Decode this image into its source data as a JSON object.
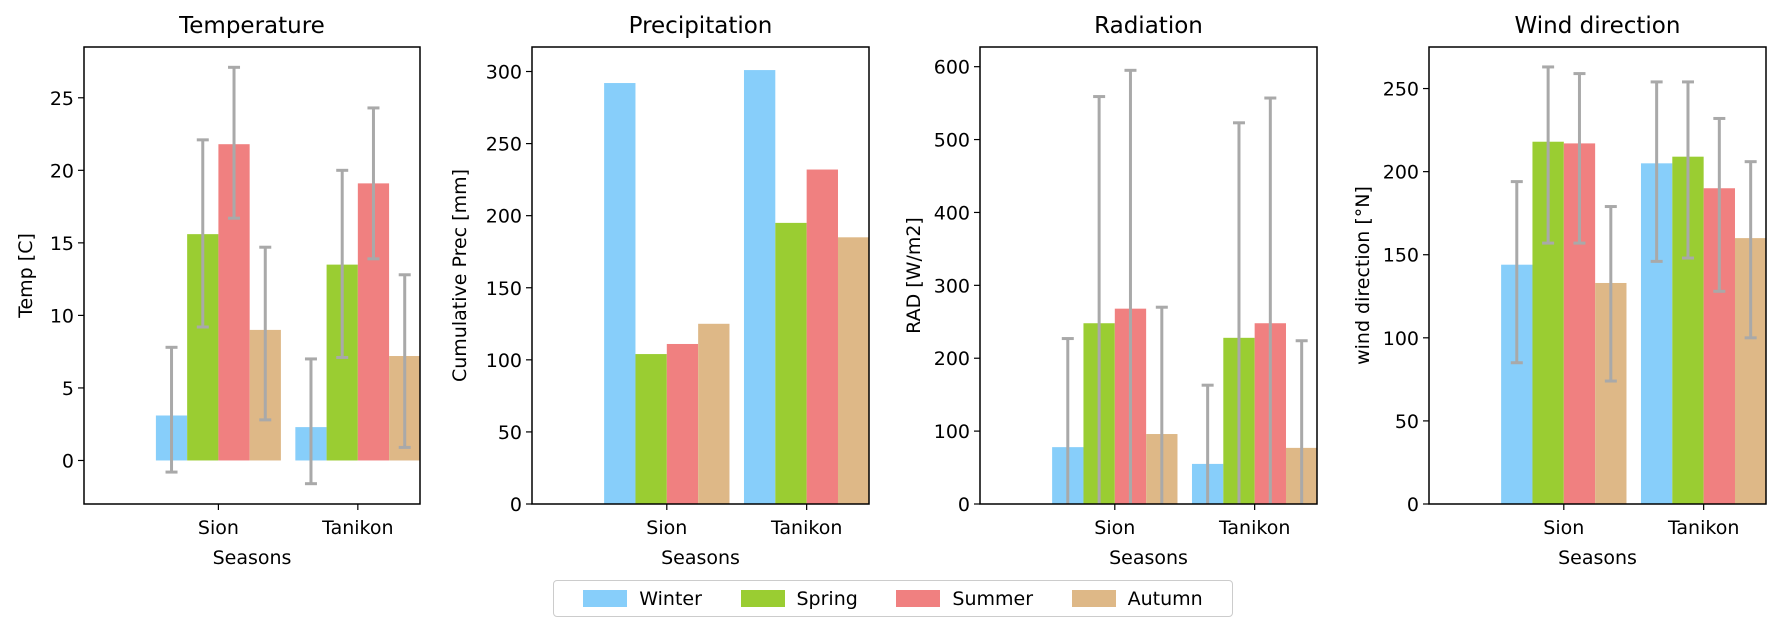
{
  "legend": {
    "items": [
      {
        "label": "Winter",
        "color": "#87CEFA"
      },
      {
        "label": "Spring",
        "color": "#9ACD32"
      },
      {
        "label": "Summer",
        "color": "#F08080"
      },
      {
        "label": "Autumn",
        "color": "#DEB887"
      }
    ]
  },
  "error_bar_color": "#a9a9a9",
  "chart_data": [
    {
      "type": "bar",
      "title": "Temperature",
      "xlabel": "Seasons",
      "ylabel": "Temp [C]",
      "categories": [
        "Sion",
        "Tanikon"
      ],
      "ylim": [
        -3,
        28.5
      ],
      "yticks": [
        0,
        5,
        10,
        15,
        20,
        25
      ],
      "series": [
        {
          "name": "Winter",
          "values": [
            3.1,
            2.3
          ],
          "err_low": [
            -0.8,
            -1.6
          ],
          "err_high": [
            7.8,
            7.0
          ]
        },
        {
          "name": "Spring",
          "values": [
            15.6,
            13.5
          ],
          "err_low": [
            9.2,
            7.1
          ],
          "err_high": [
            22.1,
            20.0
          ]
        },
        {
          "name": "Summer",
          "values": [
            21.8,
            19.1
          ],
          "err_low": [
            16.7,
            13.9
          ],
          "err_high": [
            27.1,
            24.3
          ]
        },
        {
          "name": "Autumn",
          "values": [
            9.0,
            7.2
          ],
          "err_low": [
            2.8,
            0.9
          ],
          "err_high": [
            14.7,
            12.8
          ]
        }
      ]
    },
    {
      "type": "bar",
      "title": "Precipitation",
      "xlabel": "Seasons",
      "ylabel": "Cumulative Prec [mm]",
      "categories": [
        "Sion",
        "Tanikon"
      ],
      "ylim": [
        0,
        317
      ],
      "yticks": [
        0,
        50,
        100,
        150,
        200,
        250,
        300
      ],
      "series": [
        {
          "name": "Winter",
          "values": [
            292,
            301
          ]
        },
        {
          "name": "Spring",
          "values": [
            104,
            195
          ]
        },
        {
          "name": "Summer",
          "values": [
            111,
            232
          ]
        },
        {
          "name": "Autumn",
          "values": [
            125,
            185
          ]
        }
      ]
    },
    {
      "type": "bar",
      "title": "Radiation",
      "xlabel": "Seasons",
      "ylabel": "RAD [W/m2]",
      "categories": [
        "Sion",
        "Tanikon"
      ],
      "ylim": [
        0,
        627
      ],
      "yticks": [
        0,
        100,
        200,
        300,
        400,
        500,
        600
      ],
      "series": [
        {
          "name": "Winter",
          "values": [
            78,
            55
          ],
          "err_low": [
            0,
            0
          ],
          "err_high": [
            227,
            163
          ]
        },
        {
          "name": "Spring",
          "values": [
            248,
            228
          ],
          "err_low": [
            0,
            0
          ],
          "err_high": [
            559,
            523
          ]
        },
        {
          "name": "Summer",
          "values": [
            268,
            248
          ],
          "err_low": [
            0,
            0
          ],
          "err_high": [
            595,
            557
          ]
        },
        {
          "name": "Autumn",
          "values": [
            96,
            77
          ],
          "err_low": [
            0,
            0
          ],
          "err_high": [
            270,
            224
          ]
        }
      ]
    },
    {
      "type": "bar",
      "title": "Wind direction",
      "xlabel": "Seasons",
      "ylabel": "wind direction [°N]",
      "categories": [
        "Sion",
        "Tanikon"
      ],
      "ylim": [
        0,
        275
      ],
      "yticks": [
        0,
        50,
        100,
        150,
        200,
        250
      ],
      "series": [
        {
          "name": "Winter",
          "values": [
            144,
            205
          ],
          "err_low": [
            85,
            146
          ],
          "err_high": [
            194,
            254
          ]
        },
        {
          "name": "Spring",
          "values": [
            218,
            209
          ],
          "err_low": [
            157,
            148
          ],
          "err_high": [
            263,
            254
          ]
        },
        {
          "name": "Summer",
          "values": [
            217,
            190
          ],
          "err_low": [
            157,
            128
          ],
          "err_high": [
            259,
            232
          ]
        },
        {
          "name": "Autumn",
          "values": [
            133,
            160
          ],
          "err_low": [
            74,
            100
          ],
          "err_high": [
            179,
            206
          ]
        }
      ]
    }
  ]
}
